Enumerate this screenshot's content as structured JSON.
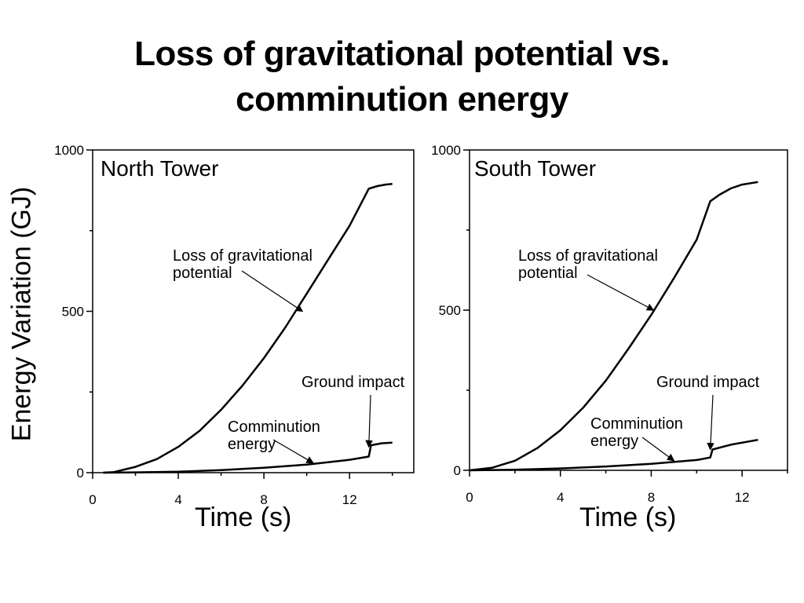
{
  "title_line1": "Loss of gravitational potential vs.",
  "title_line2": "comminution energy",
  "ylabel": "Energy Variation (GJ)",
  "chart_data": [
    {
      "type": "line",
      "panel_label": "North Tower",
      "xlabel": "Time (s)",
      "xlim": [
        0,
        15
      ],
      "ylim": [
        0,
        1000
      ],
      "x_ticks": [
        0,
        4,
        8,
        12
      ],
      "y_ticks": [
        0,
        500,
        1000
      ],
      "series": [
        {
          "name": "Loss of gravitational potential",
          "x": [
            0.5,
            1,
            2,
            3,
            4,
            5,
            6,
            7,
            8,
            9,
            10,
            11,
            12,
            12.9,
            13.3,
            13.7,
            14
          ],
          "y": [
            0,
            2,
            18,
            42,
            80,
            130,
            195,
            270,
            355,
            450,
            555,
            660,
            765,
            880,
            888,
            893,
            895
          ]
        },
        {
          "name": "Comminution energy",
          "x": [
            0.5,
            2,
            4,
            6,
            8,
            10,
            12,
            12.9,
            13.0,
            13.5,
            14
          ],
          "y": [
            0,
            1,
            3,
            8,
            15,
            25,
            40,
            50,
            85,
            91,
            93
          ]
        }
      ],
      "annotations": [
        {
          "lines": [
            "Loss of gravitational",
            "potential"
          ],
          "target": [
            9.8,
            500
          ]
        },
        {
          "lines": [
            "Ground impact"
          ],
          "target": [
            12.9,
            80
          ]
        },
        {
          "lines": [
            "Comminution",
            "energy"
          ],
          "target": [
            10.3,
            30
          ]
        }
      ]
    },
    {
      "type": "line",
      "panel_label": "South Tower",
      "xlabel": "Time (s)",
      "xlim": [
        0,
        14
      ],
      "ylim": [
        0,
        1000
      ],
      "x_ticks": [
        0,
        4,
        8,
        12
      ],
      "y_ticks": [
        0,
        500,
        1000
      ],
      "series": [
        {
          "name": "Loss of gravitational potential",
          "x": [
            0,
            1,
            2,
            3,
            4,
            5,
            6,
            7,
            8,
            9,
            10,
            10.6,
            11,
            11.5,
            12,
            12.7
          ],
          "y": [
            0,
            8,
            30,
            70,
            125,
            195,
            280,
            380,
            485,
            600,
            720,
            840,
            860,
            880,
            892,
            900
          ]
        },
        {
          "name": "Comminution energy",
          "x": [
            0,
            2,
            4,
            6,
            8,
            10,
            10.6,
            10.7,
            11.5,
            12.7
          ],
          "y": [
            0,
            2,
            6,
            12,
            20,
            32,
            40,
            65,
            80,
            95
          ]
        }
      ],
      "annotations": [
        {
          "lines": [
            "Loss of gravitational",
            "potential"
          ],
          "target": [
            8.1,
            500
          ]
        },
        {
          "lines": [
            "Ground impact"
          ],
          "target": [
            10.6,
            65
          ]
        },
        {
          "lines": [
            "Comminution",
            "energy"
          ],
          "target": [
            9.0,
            30
          ]
        }
      ]
    }
  ]
}
